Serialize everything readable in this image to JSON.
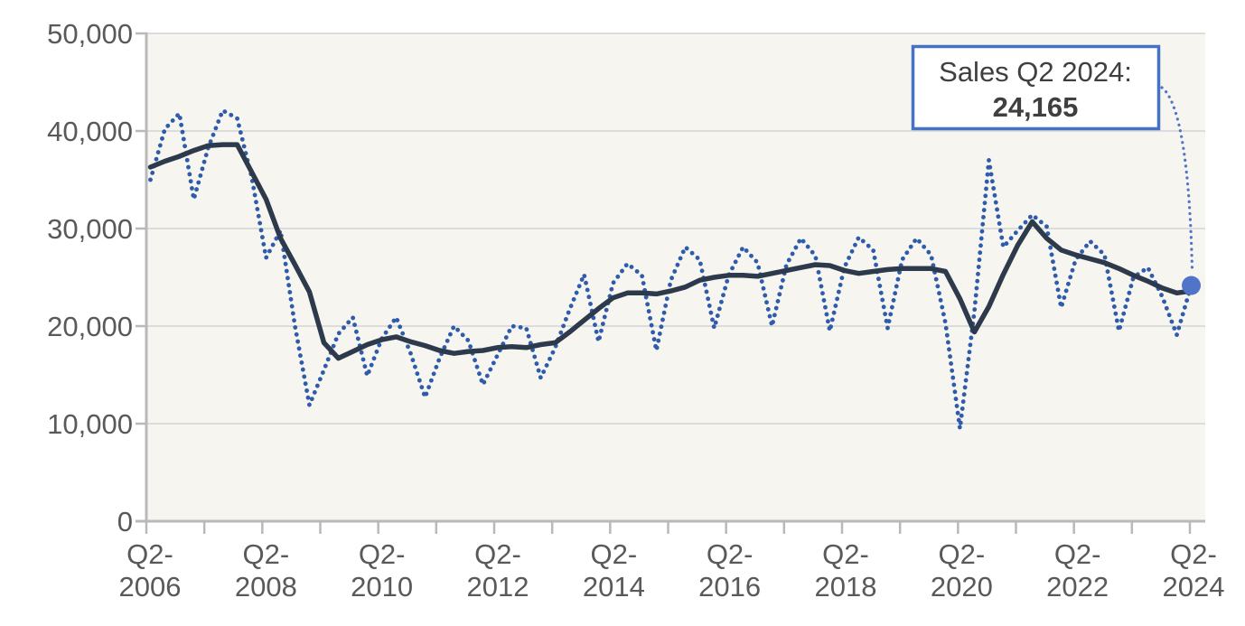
{
  "annotation": {
    "label": "Sales Q2 2024:",
    "value": "24,165"
  },
  "colors": {
    "sales_line": "#2e5cab",
    "trend_line": "#2d3a4c",
    "marker": "#4f74c8",
    "leader": "#4f74c8",
    "grid": "#dcdcdc",
    "axis": "#b9b9b9",
    "tick_label": "#595959",
    "plot_bg": "#f7f5f0",
    "annotation_border": "#4472c4",
    "annotation_bg": "#ffffff"
  },
  "chart_data": {
    "type": "line",
    "x_start": "Q2-2006",
    "x_end": "Q2-2024",
    "x_unit": "quarter",
    "x_labels": [
      "Q2-2006",
      "Q2-2008",
      "Q2-2010",
      "Q2-2012",
      "Q2-2014",
      "Q2-2016",
      "Q2-2018",
      "Q2-2020",
      "Q2-2022",
      "Q2-2024"
    ],
    "y_ticks": [
      0,
      10000,
      20000,
      30000,
      40000,
      50000
    ],
    "y_labels": [
      "0",
      "10,000",
      "20,000",
      "30,000",
      "40,000",
      "50,000"
    ],
    "ylim": [
      0,
      50000
    ],
    "grid": "horizontal",
    "legend": "none",
    "series": [
      {
        "name": "sales-quarterly",
        "style": "dotted",
        "values": [
          35000,
          40200,
          41800,
          33000,
          38300,
          42100,
          41300,
          35300,
          27000,
          29800,
          20000,
          11900,
          15500,
          19200,
          20900,
          14900,
          18700,
          20900,
          17200,
          12700,
          16700,
          20000,
          18500,
          14000,
          17000,
          20000,
          19800,
          14700,
          17800,
          21700,
          25300,
          18400,
          24400,
          26400,
          25200,
          17500,
          24700,
          28100,
          26800,
          19800,
          25200,
          28100,
          26500,
          20000,
          26300,
          29000,
          27200,
          19500,
          26000,
          29100,
          27800,
          19800,
          26800,
          29000,
          27300,
          20300,
          9500,
          21500,
          37000,
          28100,
          29800,
          31400,
          30200,
          21900,
          26800,
          28700,
          27300,
          19500,
          25000,
          26000,
          23000,
          19100,
          24165
        ]
      },
      {
        "name": "sales-trend",
        "style": "solid",
        "values": [
          36300,
          36900,
          37400,
          38000,
          38500,
          38600,
          38600,
          35800,
          33000,
          29000,
          26300,
          23500,
          18300,
          16700,
          17400,
          18100,
          18600,
          18900,
          18400,
          18000,
          17500,
          17200,
          17400,
          17500,
          17800,
          17900,
          17800,
          18100,
          18300,
          19400,
          20600,
          21800,
          22900,
          23400,
          23400,
          23300,
          23600,
          24000,
          24700,
          25000,
          25200,
          25200,
          25100,
          25400,
          25700,
          26000,
          26300,
          26200,
          25700,
          25400,
          25600,
          25800,
          25900,
          25900,
          25900,
          25600,
          22800,
          19400,
          22000,
          25300,
          28300,
          30700,
          29000,
          27800,
          27300,
          26900,
          26500,
          25900,
          25200,
          24600,
          23900,
          23400,
          23600
        ]
      }
    ],
    "highlight": {
      "x": "Q2-2024",
      "value": 24165
    }
  }
}
